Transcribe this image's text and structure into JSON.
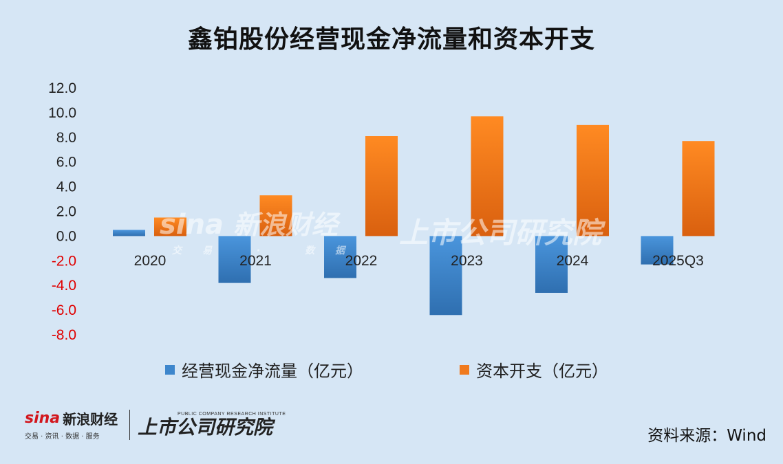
{
  "title": "鑫铂股份经营现金净流量和资本开支",
  "source": "资料来源：Wind",
  "watermark": {
    "sina_en": "sina",
    "sina_cn": "新浪财经",
    "sina_sub": "交易 · 数据",
    "institute": "上市公司研究院"
  },
  "footer": {
    "sina_en": "sina",
    "sina_cn": "新浪财经",
    "sina_sub": "交易 · 资讯 · 数据 · 服务",
    "institute": "上市公司研究院",
    "institute_en": "PUBLIC COMPANY RESEARCH INSTITUTE"
  },
  "colors": {
    "background": "#d6e6f5",
    "series1": "#3d86cc",
    "series2": "#f07a1e",
    "negative_tick": "#e00000"
  },
  "chart_data": {
    "type": "bar",
    "title": "鑫铂股份经营现金净流量和资本开支",
    "categories": [
      "2020",
      "2021",
      "2022",
      "2023",
      "2024",
      "2025Q3"
    ],
    "series": [
      {
        "name": "经营现金净流量（亿元）",
        "values": [
          0.5,
          -3.8,
          -3.4,
          -6.4,
          -4.6,
          -2.3
        ]
      },
      {
        "name": "资本开支（亿元）",
        "values": [
          1.5,
          3.3,
          8.1,
          9.7,
          9.0,
          7.7
        ]
      }
    ],
    "ylim": [
      -8,
      12
    ],
    "yticks": [
      "12.0",
      "10.0",
      "8.0",
      "6.0",
      "4.0",
      "2.0",
      "0.0",
      "-2.0",
      "-4.0",
      "-6.0",
      "-8.0"
    ],
    "ytick_values": [
      12,
      10,
      8,
      6,
      4,
      2,
      0,
      -2,
      -4,
      -6,
      -8
    ],
    "grid": false,
    "legend_position": "bottom"
  }
}
